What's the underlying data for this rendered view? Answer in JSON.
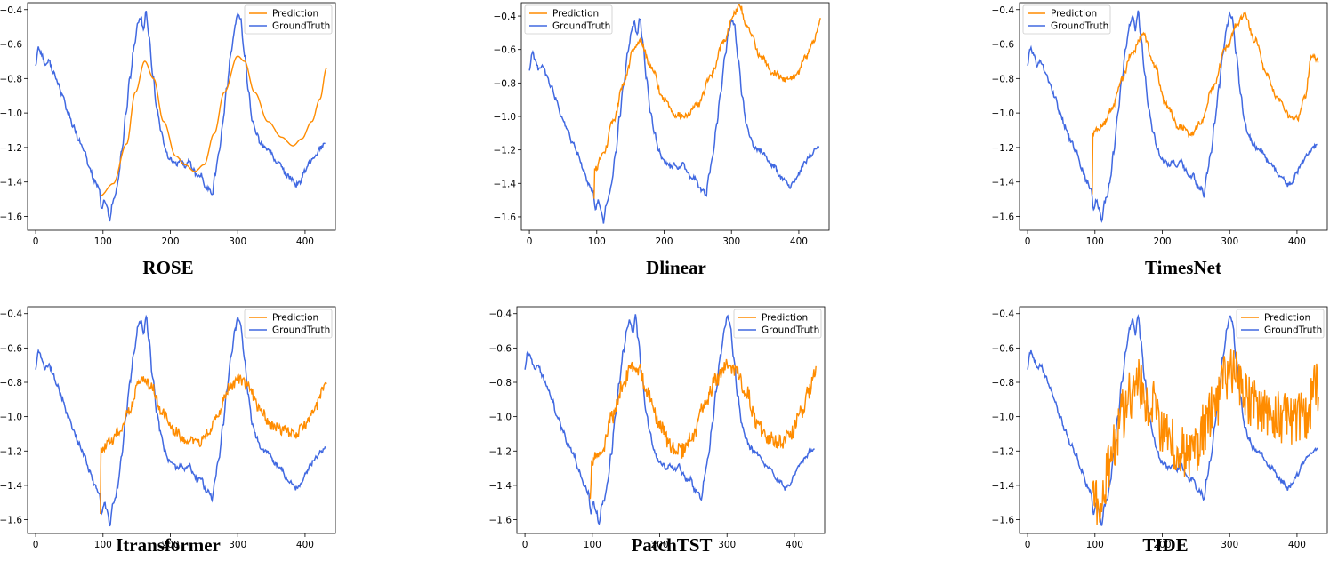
{
  "colors": {
    "prediction": "#ff8c00",
    "ground_truth": "#4169e1",
    "frame": "#000000"
  },
  "chart_data": [
    {
      "type": "line",
      "title": "ROSE",
      "xlim": [
        0,
        430
      ],
      "ylim": [
        -1.68,
        -0.36
      ],
      "xticks": [
        0,
        100,
        200,
        300,
        400
      ],
      "yticks": [
        -1.6,
        -1.4,
        -1.2,
        -1.0,
        -0.8,
        -0.6,
        -0.4
      ],
      "legend": "top-right",
      "series": [
        {
          "name": "Prediction",
          "style": "smooth",
          "points": [
            [
              96,
              -1.48
            ],
            [
              115,
              -1.41
            ],
            [
              135,
              -1.18
            ],
            [
              148,
              -0.88
            ],
            [
              162,
              -0.7
            ],
            [
              175,
              -0.8
            ],
            [
              190,
              -1.05
            ],
            [
              208,
              -1.25
            ],
            [
              222,
              -1.3
            ],
            [
              236,
              -1.34
            ],
            [
              250,
              -1.3
            ],
            [
              265,
              -1.12
            ],
            [
              280,
              -0.88
            ],
            [
              300,
              -0.67
            ],
            [
              310,
              -0.7
            ],
            [
              325,
              -0.88
            ],
            [
              345,
              -1.05
            ],
            [
              365,
              -1.14
            ],
            [
              382,
              -1.19
            ],
            [
              395,
              -1.15
            ],
            [
              410,
              -1.05
            ],
            [
              422,
              -0.92
            ],
            [
              432,
              -0.74
            ]
          ]
        }
      ]
    },
    {
      "type": "line",
      "title": "Dlinear",
      "xlim": [
        0,
        430
      ],
      "ylim": [
        -1.68,
        -0.32
      ],
      "xticks": [
        0,
        100,
        200,
        300,
        400
      ],
      "yticks": [
        -1.6,
        -1.4,
        -1.2,
        -1.0,
        -0.8,
        -0.6,
        -0.4
      ],
      "legend": "top-left",
      "series": [
        {
          "name": "Prediction",
          "style": "noisy-low",
          "points": [
            [
              96,
              -1.5
            ],
            [
              97,
              -1.32
            ],
            [
              110,
              -1.22
            ],
            [
              125,
              -1.02
            ],
            [
              140,
              -0.8
            ],
            [
              155,
              -0.6
            ],
            [
              165,
              -0.55
            ],
            [
              180,
              -0.7
            ],
            [
              200,
              -0.9
            ],
            [
              218,
              -0.99
            ],
            [
              232,
              -1.0
            ],
            [
              250,
              -0.93
            ],
            [
              270,
              -0.75
            ],
            [
              288,
              -0.55
            ],
            [
              305,
              -0.38
            ],
            [
              312,
              -0.34
            ],
            [
              325,
              -0.48
            ],
            [
              345,
              -0.65
            ],
            [
              362,
              -0.74
            ],
            [
              380,
              -0.78
            ],
            [
              395,
              -0.76
            ],
            [
              410,
              -0.65
            ],
            [
              422,
              -0.55
            ],
            [
              432,
              -0.42
            ]
          ]
        }
      ]
    },
    {
      "type": "line",
      "title": "TimesNet",
      "xlim": [
        0,
        430
      ],
      "ylim": [
        -1.68,
        -0.36
      ],
      "xticks": [
        0,
        100,
        200,
        300,
        400
      ],
      "yticks": [
        -1.6,
        -1.4,
        -1.2,
        -1.0,
        -0.8,
        -0.6,
        -0.4
      ],
      "legend": "top-left",
      "series": [
        {
          "name": "Prediction",
          "style": "noisy-low",
          "points": [
            [
              96,
              -1.48
            ],
            [
              97,
              -1.11
            ],
            [
              110,
              -1.08
            ],
            [
              125,
              -0.98
            ],
            [
              140,
              -0.8
            ],
            [
              155,
              -0.65
            ],
            [
              172,
              -0.55
            ],
            [
              188,
              -0.72
            ],
            [
              205,
              -0.95
            ],
            [
              225,
              -1.08
            ],
            [
              243,
              -1.12
            ],
            [
              258,
              -1.05
            ],
            [
              275,
              -0.85
            ],
            [
              295,
              -0.62
            ],
            [
              312,
              -0.48
            ],
            [
              322,
              -0.43
            ],
            [
              338,
              -0.58
            ],
            [
              355,
              -0.78
            ],
            [
              372,
              -0.92
            ],
            [
              390,
              -1.02
            ],
            [
              402,
              -1.03
            ],
            [
              412,
              -0.9
            ],
            [
              422,
              -0.66
            ],
            [
              428,
              -0.68
            ],
            [
              432,
              -0.7
            ]
          ]
        }
      ]
    },
    {
      "type": "line",
      "title": "Itransformer",
      "xlim": [
        0,
        430
      ],
      "ylim": [
        -1.68,
        -0.36
      ],
      "xticks": [
        0,
        100,
        200,
        300,
        400
      ],
      "yticks": [
        -1.6,
        -1.4,
        -1.2,
        -1.0,
        -0.8,
        -0.6,
        -0.4
      ],
      "legend": "top-right",
      "series": [
        {
          "name": "Prediction",
          "style": "noisy-mid",
          "points": [
            [
              96,
              -1.58
            ],
            [
              97,
              -1.2
            ],
            [
              110,
              -1.15
            ],
            [
              125,
              -1.08
            ],
            [
              140,
              -0.95
            ],
            [
              152,
              -0.82
            ],
            [
              160,
              -0.77
            ],
            [
              172,
              -0.82
            ],
            [
              188,
              -0.98
            ],
            [
              205,
              -1.08
            ],
            [
              222,
              -1.13
            ],
            [
              240,
              -1.16
            ],
            [
              255,
              -1.1
            ],
            [
              270,
              -0.98
            ],
            [
              290,
              -0.82
            ],
            [
              302,
              -0.78
            ],
            [
              315,
              -0.82
            ],
            [
              332,
              -0.95
            ],
            [
              350,
              -1.05
            ],
            [
              368,
              -1.08
            ],
            [
              385,
              -1.1
            ],
            [
              400,
              -1.05
            ],
            [
              415,
              -0.95
            ],
            [
              426,
              -0.85
            ],
            [
              432,
              -0.78
            ]
          ]
        }
      ]
    },
    {
      "type": "line",
      "title": "PatchTST",
      "xlim": [
        0,
        430
      ],
      "ylim": [
        -1.68,
        -0.36
      ],
      "xticks": [
        0,
        100,
        200,
        300,
        400
      ],
      "yticks": [
        -1.6,
        -1.4,
        -1.2,
        -1.0,
        -0.8,
        -0.6,
        -0.4
      ],
      "legend": "top-right",
      "series": [
        {
          "name": "Prediction",
          "style": "noisy-high",
          "points": [
            [
              96,
              -1.5
            ],
            [
              100,
              -1.25
            ],
            [
              115,
              -1.18
            ],
            [
              130,
              -1.0
            ],
            [
              145,
              -0.82
            ],
            [
              158,
              -0.7
            ],
            [
              168,
              -0.72
            ],
            [
              182,
              -0.85
            ],
            [
              200,
              -1.05
            ],
            [
              218,
              -1.18
            ],
            [
              232,
              -1.2
            ],
            [
              248,
              -1.12
            ],
            [
              265,
              -0.95
            ],
            [
              285,
              -0.78
            ],
            [
              300,
              -0.7
            ],
            [
              312,
              -0.72
            ],
            [
              328,
              -0.85
            ],
            [
              345,
              -1.05
            ],
            [
              362,
              -1.12
            ],
            [
              380,
              -1.15
            ],
            [
              395,
              -1.1
            ],
            [
              410,
              -0.98
            ],
            [
              422,
              -0.85
            ],
            [
              432,
              -0.72
            ]
          ]
        }
      ]
    },
    {
      "type": "line",
      "title": "TIDE",
      "xlim": [
        0,
        430
      ],
      "ylim": [
        -1.68,
        -0.36
      ],
      "xticks": [
        0,
        100,
        200,
        300,
        400
      ],
      "yticks": [
        -1.6,
        -1.4,
        -1.2,
        -1.0,
        -0.8,
        -0.6,
        -0.4
      ],
      "legend": "top-right",
      "series": [
        {
          "name": "Prediction",
          "style": "noisy-extreme",
          "points": [
            [
              96,
              -1.52
            ],
            [
              110,
              -1.45
            ],
            [
              125,
              -1.22
            ],
            [
              140,
              -1.0
            ],
            [
              155,
              -0.85
            ],
            [
              165,
              -0.8
            ],
            [
              180,
              -0.9
            ],
            [
              198,
              -1.05
            ],
            [
              215,
              -1.15
            ],
            [
              232,
              -1.22
            ],
            [
              250,
              -1.18
            ],
            [
              265,
              -1.05
            ],
            [
              282,
              -0.9
            ],
            [
              300,
              -0.72
            ],
            [
              312,
              -0.78
            ],
            [
              330,
              -0.92
            ],
            [
              350,
              -0.98
            ],
            [
              370,
              -1.0
            ],
            [
              390,
              -1.02
            ],
            [
              410,
              -1.0
            ],
            [
              432,
              -0.82
            ]
          ]
        }
      ]
    }
  ],
  "shared_series": {
    "GroundTruth": {
      "name": "GroundTruth",
      "points": [
        [
          0,
          -0.72
        ],
        [
          4,
          -0.62
        ],
        [
          8,
          -0.65
        ],
        [
          14,
          -0.72
        ],
        [
          20,
          -0.7
        ],
        [
          26,
          -0.76
        ],
        [
          32,
          -0.82
        ],
        [
          40,
          -0.9
        ],
        [
          48,
          -1.0
        ],
        [
          56,
          -1.08
        ],
        [
          64,
          -1.16
        ],
        [
          72,
          -1.22
        ],
        [
          80,
          -1.32
        ],
        [
          88,
          -1.4
        ],
        [
          94,
          -1.44
        ],
        [
          98,
          -1.56
        ],
        [
          102,
          -1.5
        ],
        [
          106,
          -1.55
        ],
        [
          110,
          -1.63
        ],
        [
          114,
          -1.52
        ],
        [
          118,
          -1.48
        ],
        [
          122,
          -1.4
        ],
        [
          128,
          -1.22
        ],
        [
          134,
          -1.0
        ],
        [
          140,
          -0.8
        ],
        [
          146,
          -0.62
        ],
        [
          152,
          -0.48
        ],
        [
          156,
          -0.44
        ],
        [
          160,
          -0.52
        ],
        [
          164,
          -0.41
        ],
        [
          168,
          -0.55
        ],
        [
          174,
          -0.78
        ],
        [
          180,
          -0.98
        ],
        [
          186,
          -1.1
        ],
        [
          192,
          -1.2
        ],
        [
          198,
          -1.26
        ],
        [
          204,
          -1.28
        ],
        [
          210,
          -1.3
        ],
        [
          216,
          -1.28
        ],
        [
          222,
          -1.31
        ],
        [
          228,
          -1.28
        ],
        [
          234,
          -1.33
        ],
        [
          240,
          -1.37
        ],
        [
          246,
          -1.36
        ],
        [
          252,
          -1.43
        ],
        [
          258,
          -1.44
        ],
        [
          262,
          -1.48
        ],
        [
          266,
          -1.36
        ],
        [
          272,
          -1.24
        ],
        [
          278,
          -1.05
        ],
        [
          284,
          -0.85
        ],
        [
          290,
          -0.65
        ],
        [
          296,
          -0.5
        ],
        [
          300,
          -0.42
        ],
        [
          304,
          -0.45
        ],
        [
          310,
          -0.66
        ],
        [
          316,
          -0.88
        ],
        [
          322,
          -1.05
        ],
        [
          328,
          -1.12
        ],
        [
          334,
          -1.18
        ],
        [
          340,
          -1.2
        ],
        [
          348,
          -1.22
        ],
        [
          356,
          -1.28
        ],
        [
          364,
          -1.3
        ],
        [
          372,
          -1.36
        ],
        [
          380,
          -1.38
        ],
        [
          386,
          -1.42
        ],
        [
          392,
          -1.4
        ],
        [
          400,
          -1.34
        ],
        [
          408,
          -1.28
        ],
        [
          416,
          -1.24
        ],
        [
          424,
          -1.2
        ],
        [
          430,
          -1.18
        ]
      ]
    }
  },
  "legend_labels": {
    "prediction": "Prediction",
    "ground_truth": "GroundTruth"
  }
}
